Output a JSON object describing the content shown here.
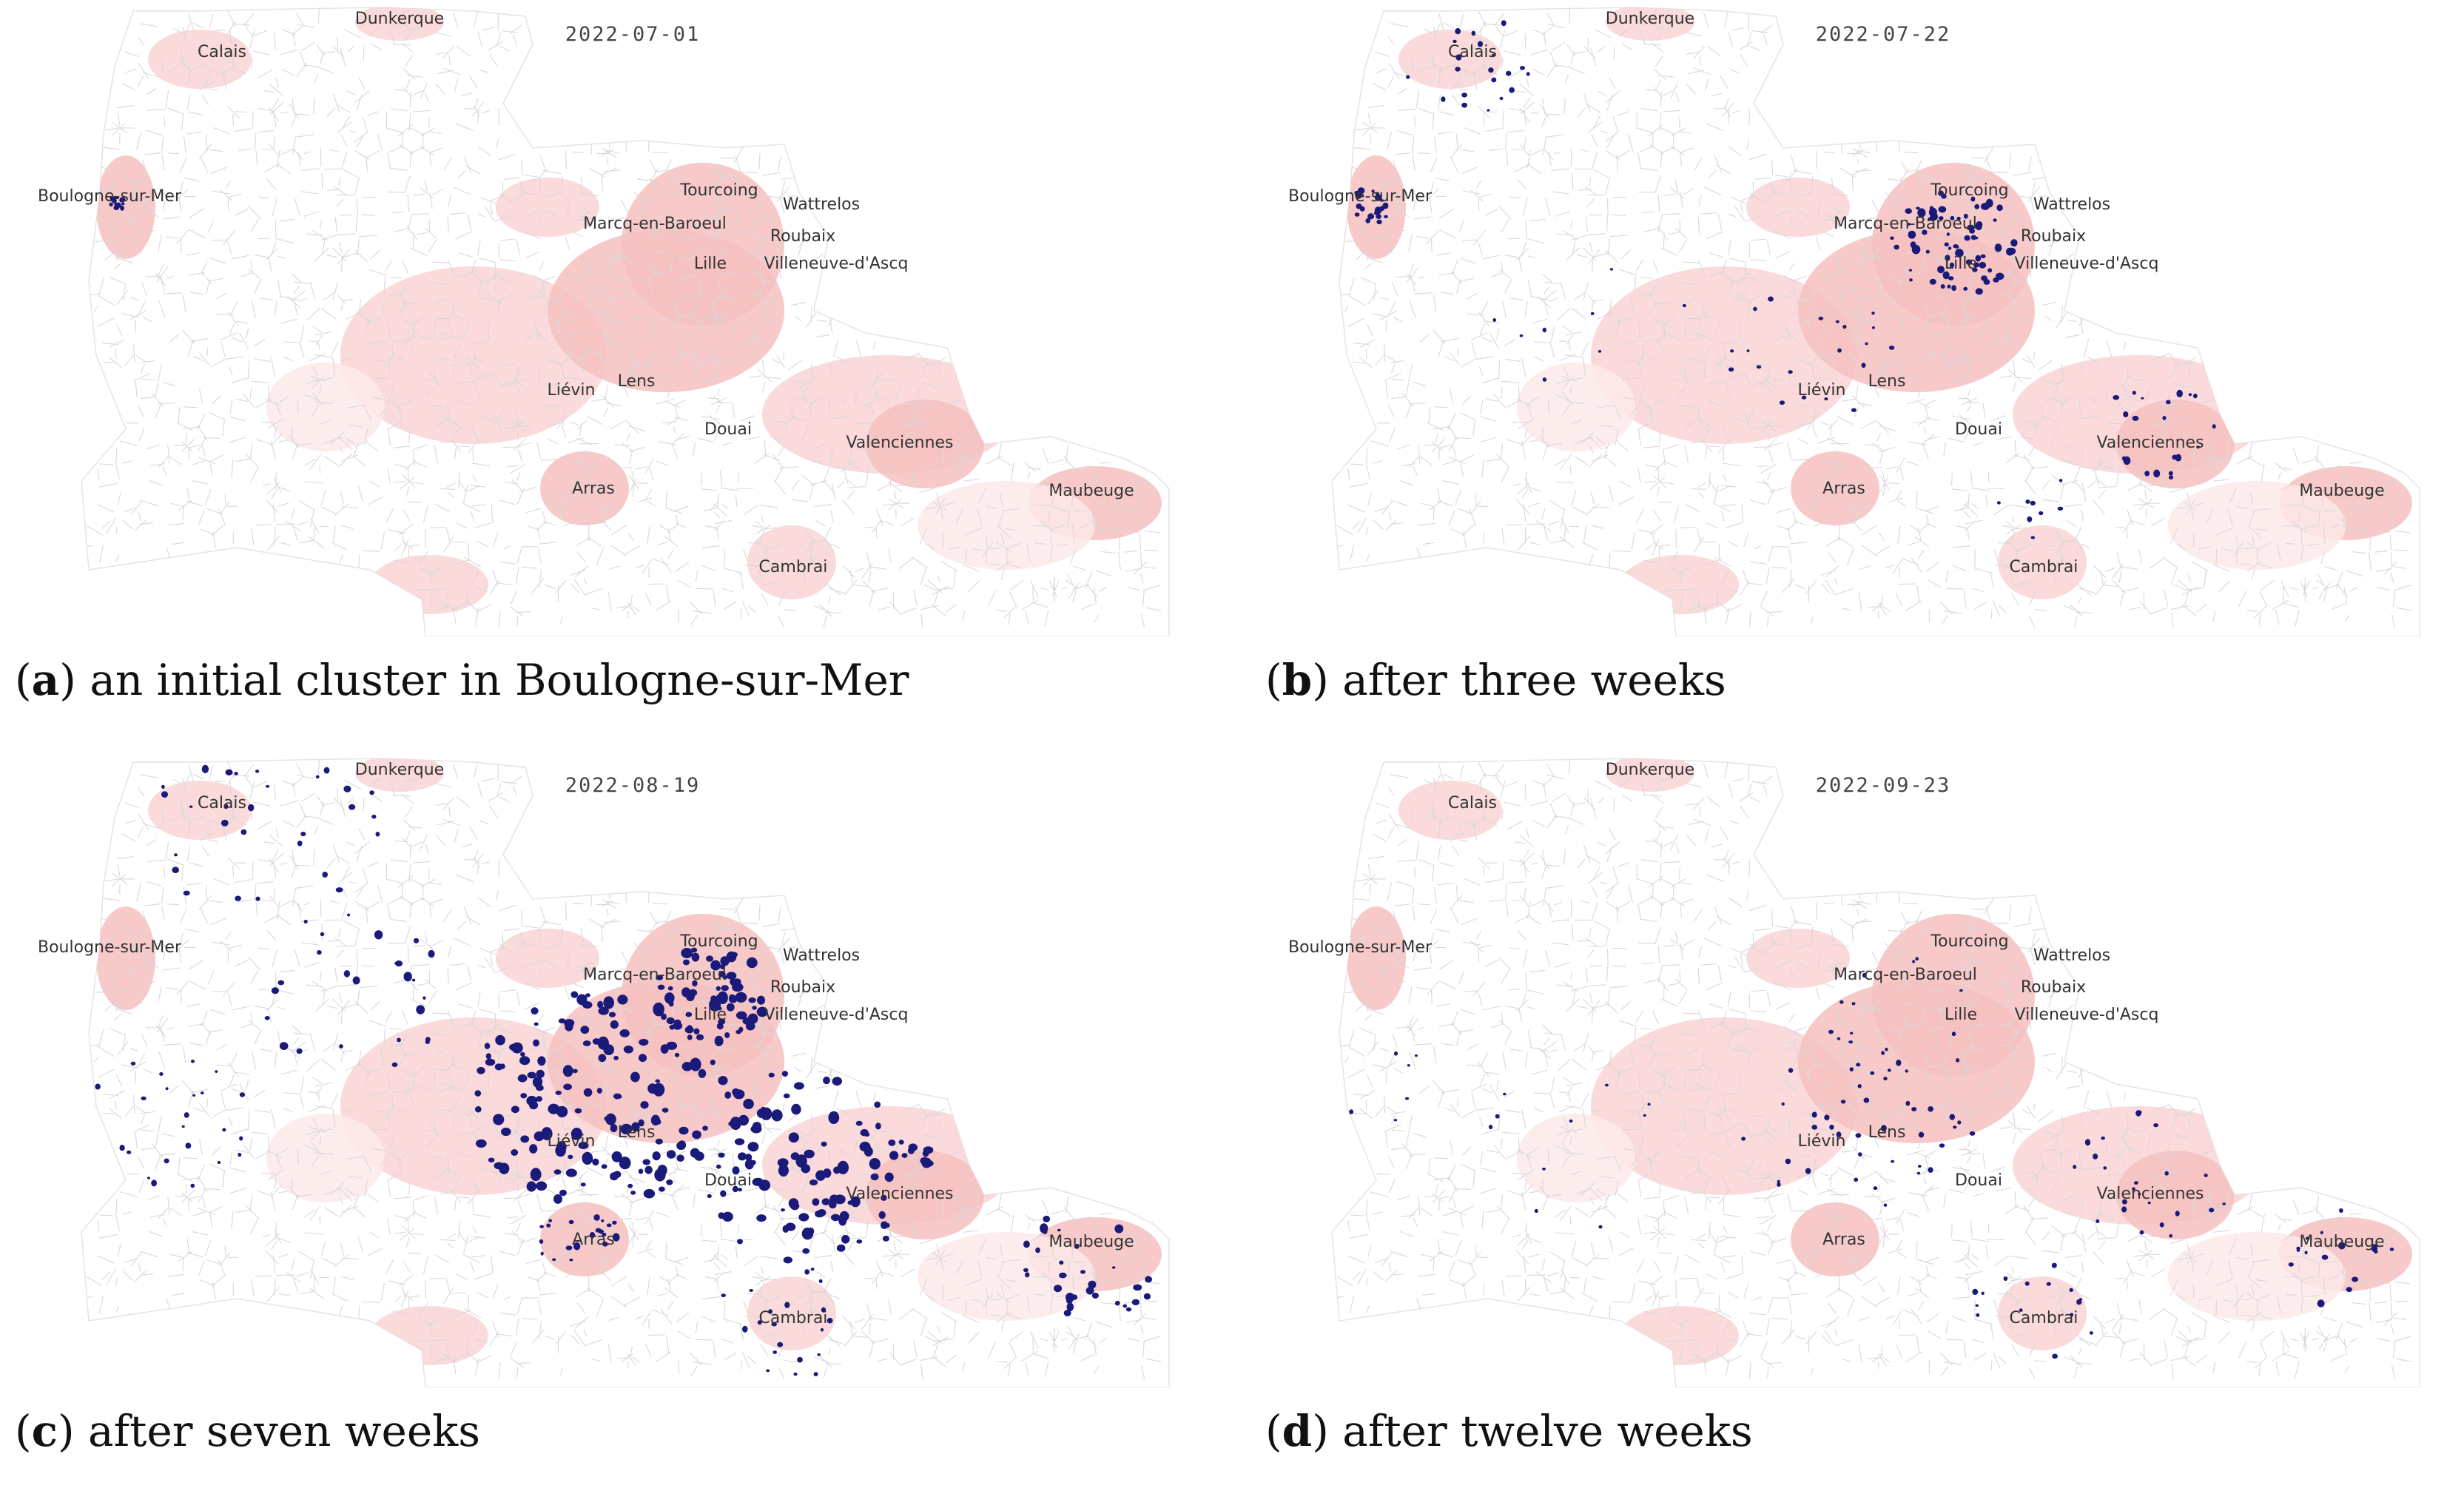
{
  "figure": {
    "panels": [
      {
        "id": "a",
        "letter": "a",
        "caption": "an initial cluster in Boulogne-sur-Mer",
        "date": "2022-07-01",
        "outbreak": "initial"
      },
      {
        "id": "b",
        "letter": "b",
        "caption": "after three weeks",
        "date": "2022-07-22",
        "outbreak": "week3"
      },
      {
        "id": "c",
        "letter": "c",
        "caption": "after seven weeks",
        "date": "2022-08-19",
        "outbreak": "week7"
      },
      {
        "id": "d",
        "letter": "d",
        "caption": "after twelve weeks",
        "date": "2022-09-23",
        "outbreak": "week12"
      }
    ],
    "cities": [
      "Dunkerque",
      "Calais",
      "Boulogne-sur-Mer",
      "Tourcoing",
      "Wattrelos",
      "Marcq-en-Baroeul",
      "Roubaix",
      "Lille",
      "Villeneuve-d'Ascq",
      "Liévin",
      "Lens",
      "Douai",
      "Valenciennes",
      "Arras",
      "Maubeuge",
      "Cambrai"
    ],
    "colors": {
      "municipality_border": "#d8d8dc",
      "density_light": "#fde9e9",
      "density_mid": "#f9d4d4",
      "density_high": "#f6c0c0",
      "infected_dot": "#1a1a7a"
    }
  }
}
